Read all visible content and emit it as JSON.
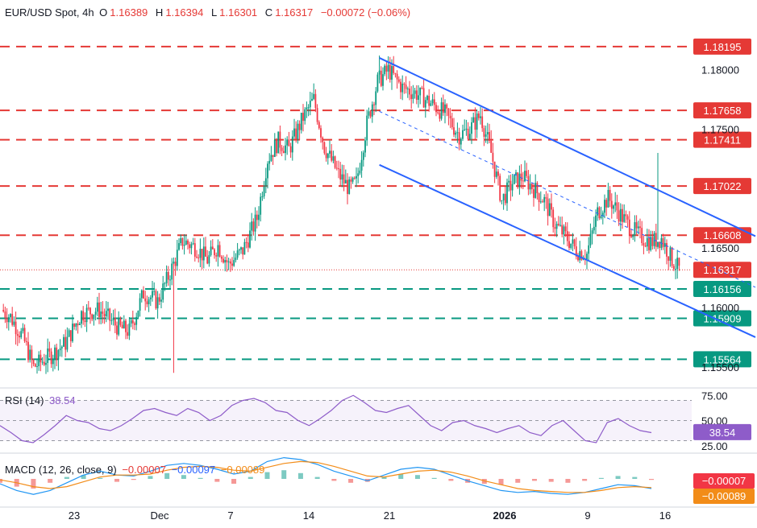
{
  "header": {
    "symbol": "EUR/USD Spot, 4h",
    "o_label": "O",
    "o": "1.16389",
    "h_label": "H",
    "h": "1.16394",
    "l_label": "L",
    "l": "1.16301",
    "c_label": "C",
    "c": "1.16317",
    "change": "−0.00072 (−0.06%)"
  },
  "rsi_legend": {
    "label": "RSI (14)",
    "value": "38.54"
  },
  "macd_legend": {
    "label": "MACD (12, 26, close, 9)",
    "hist": "−0.00007",
    "macd": "−0.00097",
    "signal": "−0.00089"
  },
  "colors": {
    "up": "#089981",
    "down": "#f23645",
    "level_red": "#e53935",
    "level_green": "#089981",
    "channel": "#2962ff",
    "rsi": "#8e5cc9",
    "macd": "#2196f3",
    "signal": "#f28c18"
  },
  "chart_data": [
    {
      "type": "candlestick",
      "title": "EUR/USD Spot, 4h",
      "x_tick_labels": [
        "23",
        "Dec",
        "7",
        "14",
        "21",
        "2026",
        "9",
        "16"
      ],
      "y_tick_labels": [
        "1.18000",
        "1.17500",
        "1.16500",
        "1.16000",
        "1.15500"
      ],
      "ylim": [
        1.1535,
        1.1835
      ],
      "candle_count": 205,
      "close_path": [
        [
          0,
          1.1598
        ],
        [
          5,
          1.1592
        ],
        [
          12,
          1.1575
        ],
        [
          18,
          1.155
        ],
        [
          28,
          1.156
        ],
        [
          36,
          1.157
        ],
        [
          45,
          1.1595
        ],
        [
          55,
          1.1598
        ],
        [
          66,
          1.1583
        ],
        [
          72,
          1.158
        ],
        [
          80,
          1.1612
        ],
        [
          88,
          1.1605
        ],
        [
          96,
          1.1633
        ],
        [
          102,
          1.1656
        ],
        [
          110,
          1.165
        ],
        [
          116,
          1.164
        ],
        [
          122,
          1.1652
        ],
        [
          128,
          1.1636
        ],
        [
          136,
          1.1648
        ],
        [
          144,
          1.1675
        ],
        [
          150,
          1.1725
        ],
        [
          156,
          1.174
        ],
        [
          162,
          1.1733
        ],
        [
          170,
          1.176
        ],
        [
          176,
          1.1775
        ],
        [
          182,
          1.1735
        ],
        [
          190,
          1.1712
        ],
        [
          196,
          1.17
        ],
        [
          200,
          1.1705
        ],
        [
          206,
          1.1755
        ],
        [
          212,
          1.179
        ],
        [
          218,
          1.18
        ],
        [
          226,
          1.1785
        ],
        [
          234,
          1.178
        ],
        [
          242,
          1.1772
        ],
        [
          250,
          1.1763
        ],
        [
          258,
          1.1745
        ],
        [
          264,
          1.175
        ],
        [
          270,
          1.1762
        ],
        [
          276,
          1.173
        ],
        [
          282,
          1.169
        ],
        [
          288,
          1.1705
        ],
        [
          294,
          1.171
        ],
        [
          300,
          1.17
        ],
        [
          306,
          1.169
        ],
        [
          312,
          1.167
        ],
        [
          318,
          1.166
        ],
        [
          324,
          1.1648
        ],
        [
          330,
          1.1645
        ],
        [
          336,
          1.168
        ],
        [
          342,
          1.1692
        ],
        [
          348,
          1.168
        ],
        [
          354,
          1.1668
        ],
        [
          360,
          1.166
        ],
        [
          366,
          1.1655
        ],
        [
          372,
          1.1658
        ],
        [
          378,
          1.164
        ],
        [
          382,
          1.1632
        ]
      ],
      "markers": [
        {
          "x": 97,
          "type": "low",
          "value": 1.1545
        },
        {
          "x": 213,
          "type": "high",
          "value": 1.1812
        },
        {
          "x": 370,
          "type": "high_spike",
          "value": 1.173
        }
      ]
    },
    {
      "type": "line",
      "title": "RSI (14)",
      "value": 38.54,
      "y_tick_labels": [
        "75.00",
        "50.00",
        "25.00"
      ],
      "ylim": [
        20,
        80
      ],
      "guides": [
        70,
        50,
        30
      ],
      "series": [
        {
          "name": "RSI (14)",
          "values": [
            45,
            38,
            30,
            28,
            36,
            45,
            55,
            50,
            48,
            42,
            40,
            45,
            52,
            60,
            62,
            58,
            55,
            62,
            58,
            50,
            55,
            65,
            70,
            72,
            68,
            60,
            58,
            50,
            45,
            52,
            60,
            70,
            75,
            68,
            60,
            58,
            62,
            65,
            55,
            45,
            40,
            48,
            50,
            45,
            42,
            38,
            42,
            45,
            38,
            35,
            45,
            50,
            40,
            30,
            28,
            48,
            52,
            45,
            40,
            38
          ]
        }
      ]
    },
    {
      "type": "bar+line",
      "title": "MACD (12, 26, close, 9)",
      "y_tick_labels": [
        "−0.00007",
        "−0.00089"
      ],
      "ylim": [
        -0.0025,
        0.0025
      ],
      "series": [
        {
          "name": "Histogram",
          "values": [
            -0.0004,
            -0.0008,
            -0.001,
            -0.0004,
            0.0002,
            0.0004,
            0.0001,
            -0.0003,
            -0.0001,
            0.0003,
            0.0006,
            0.0004,
            0.0001,
            -0.0003,
            -0.0005,
            0.0002,
            0.0007,
            0.0009,
            0.0006,
            0.0002,
            -0.0002,
            -0.0004,
            -0.0003,
            0.0002,
            0.0005,
            0.0004,
            0.0001,
            -0.0002,
            -0.0004,
            -0.0005,
            -0.0006,
            -0.0004,
            -0.0002,
            -0.0003,
            -0.0004,
            -0.0002,
            0.0001,
            0.0003,
            0.0002,
            -0.0001
          ]
        },
        {
          "name": "MACD",
          "values": [
            -0.0005,
            -0.0012,
            -0.0016,
            -0.0012,
            -0.0004,
            0.0004,
            0.0008,
            0.0004,
            0.0003,
            0.0008,
            0.0014,
            0.0016,
            0.0014,
            0.001,
            0.0005,
            0.0008,
            0.0018,
            0.0022,
            0.002,
            0.0015,
            0.0008,
            0.0003,
            -0.0002,
            0.0004,
            0.001,
            0.0012,
            0.001,
            0.0004,
            -0.0002,
            -0.0007,
            -0.0012,
            -0.0014,
            -0.0013,
            -0.0015,
            -0.0016,
            -0.0014,
            -0.001,
            -0.0006,
            -0.0007,
            -0.001
          ]
        },
        {
          "name": "Signal",
          "values": [
            -0.0001,
            -0.0004,
            -0.0008,
            -0.001,
            -0.0008,
            -0.0003,
            0.0002,
            0.0004,
            0.0004,
            0.0005,
            0.0009,
            0.0012,
            0.0013,
            0.0012,
            0.0009,
            0.0008,
            0.0012,
            0.0016,
            0.0018,
            0.0017,
            0.0013,
            0.0008,
            0.0003,
            0.0002,
            0.0005,
            0.0008,
            0.0009,
            0.0007,
            0.0003,
            -0.0002,
            -0.0006,
            -0.001,
            -0.0012,
            -0.0013,
            -0.0014,
            -0.0014,
            -0.0012,
            -0.0009,
            -0.0008,
            -0.0009
          ]
        }
      ]
    }
  ],
  "levels": [
    {
      "value": 1.18195,
      "label": "1.18195",
      "color": "red"
    },
    {
      "value": 1.17658,
      "label": "1.17658",
      "color": "red"
    },
    {
      "value": 1.17411,
      "label": "1.17411",
      "color": "red"
    },
    {
      "value": 1.17022,
      "label": "1.17022",
      "color": "red"
    },
    {
      "value": 1.16608,
      "label": "1.16608",
      "color": "red"
    },
    {
      "value": 1.16317,
      "label": "1.16317",
      "color": "price"
    },
    {
      "value": 1.16156,
      "label": "1.16156",
      "color": "green"
    },
    {
      "value": 1.15909,
      "label": "1.15909",
      "color": "green"
    },
    {
      "value": 1.15564,
      "label": "1.15564",
      "color": "green"
    }
  ],
  "channel": {
    "upper": [
      [
        213,
        1.181
      ],
      [
        425,
        1.166
      ]
    ],
    "lower": [
      [
        213,
        1.172
      ],
      [
        425,
        1.1575
      ]
    ],
    "middle": [
      [
        213,
        1.1765
      ],
      [
        425,
        1.1617
      ]
    ]
  },
  "price_label": "1.16317",
  "rsi_badge": "38.54",
  "macd_badges": [
    "−0.00007",
    "−0.00089"
  ]
}
